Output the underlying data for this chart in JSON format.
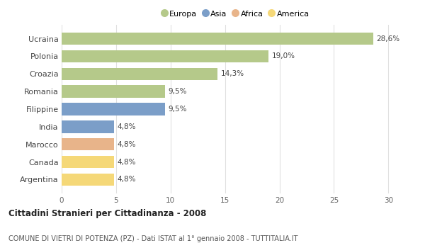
{
  "categories": [
    "Ucraina",
    "Polonia",
    "Croazia",
    "Romania",
    "Filippine",
    "India",
    "Marocco",
    "Canada",
    "Argentina"
  ],
  "values": [
    28.6,
    19.0,
    14.3,
    9.5,
    9.5,
    4.8,
    4.8,
    4.8,
    4.8
  ],
  "labels": [
    "28,6%",
    "19,0%",
    "14,3%",
    "9,5%",
    "9,5%",
    "4,8%",
    "4,8%",
    "4,8%",
    "4,8%"
  ],
  "continents": [
    "Europa",
    "Europa",
    "Europa",
    "Europa",
    "Asia",
    "Asia",
    "Africa",
    "America",
    "America"
  ],
  "colors": {
    "Europa": "#b5c98a",
    "Asia": "#7b9ec8",
    "Africa": "#e8b48a",
    "America": "#f5d878"
  },
  "legend_labels": [
    "Europa",
    "Asia",
    "Africa",
    "America"
  ],
  "legend_colors": [
    "#b5c98a",
    "#7b9ec8",
    "#e8b48a",
    "#f5d878"
  ],
  "xlim": [
    0,
    32
  ],
  "xticks": [
    0,
    5,
    10,
    15,
    20,
    25,
    30
  ],
  "title": "Cittadini Stranieri per Cittadinanza - 2008",
  "subtitle": "COMUNE DI VIETRI DI POTENZA (PZ) - Dati ISTAT al 1° gennaio 2008 - TUTTITALIA.IT",
  "background_color": "#ffffff",
  "grid_color": "#e0e0e0",
  "bar_height": 0.7
}
